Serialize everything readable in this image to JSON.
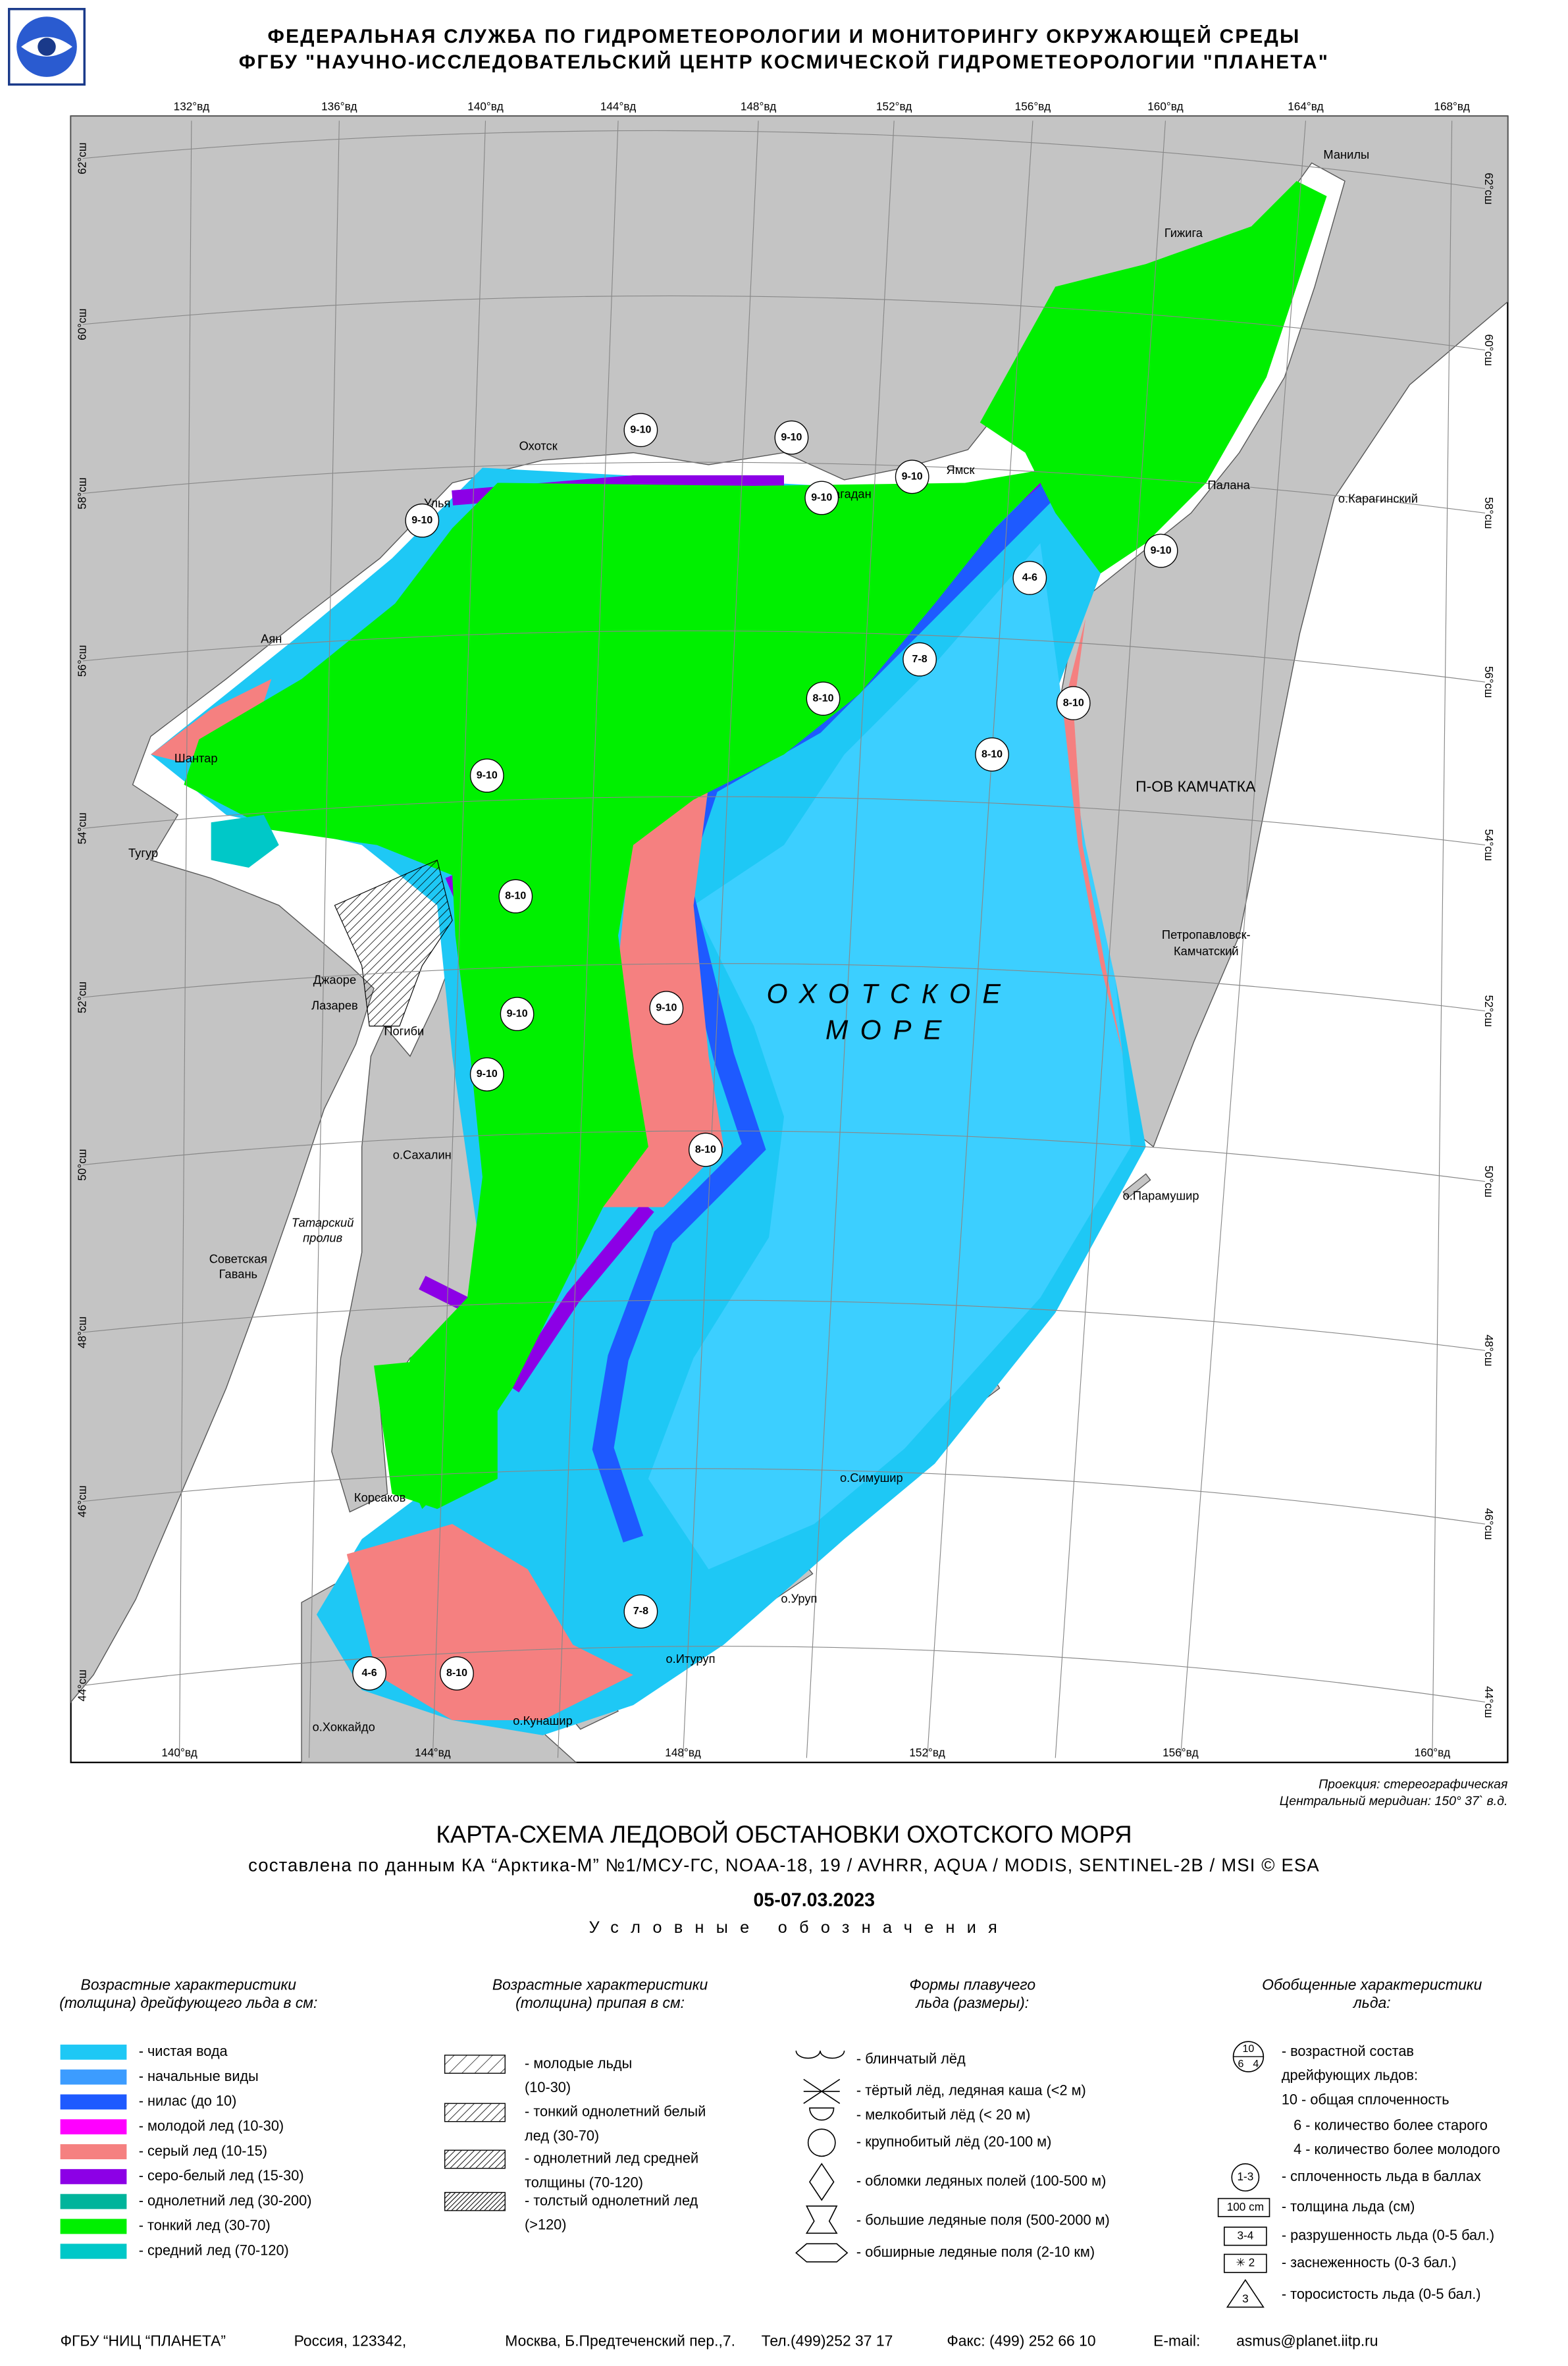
{
  "header": {
    "org": "ФЕДЕРАЛЬНАЯ СЛУЖБА ПО ГИДРОМЕТЕОРОЛОГИИ И МОНИТОРИНГУ ОКРУЖАЮЩЕЙ СРЕДЫ",
    "institute": "ФГБУ \"НАУЧНО-ИССЛЕДОВАТЕЛЬСКИЙ ЦЕНТР КОСМИЧЕСКОЙ ГИДРОМЕТЕОРОЛОГИИ \"ПЛАНЕТА\""
  },
  "map": {
    "lon_top": [
      "132°вд",
      "136°вд",
      "140°вд",
      "144°вд",
      "148°вд",
      "152°вд",
      "156°вд",
      "160°вд",
      "164°вд",
      "168°вд"
    ],
    "lon_bottom": [
      "140°вд",
      "144°вд",
      "148°вд",
      "152°вд",
      "156°вд",
      "160°вд"
    ],
    "lat_left": [
      "62°сш",
      "60°сш",
      "58°сш",
      "56°сш",
      "54°сш",
      "52°сш",
      "50°сш",
      "48°сш",
      "46°сш",
      "44°сш"
    ],
    "lat_right": [
      "62°сш",
      "60°сш",
      "58°сш",
      "56°сш",
      "54°сш",
      "52°сш",
      "50°сш",
      "48°сш",
      "46°сш",
      "44°сш"
    ],
    "places": [
      "Манилы",
      "Гижига",
      "Магадан",
      "Ямск",
      "Охотск",
      "Улья",
      "Палана",
      "о.Карагинский",
      "Аян",
      "Шантар",
      "Тугур",
      "П-ОВ КАМЧАТКА",
      "Петропавловск-",
      "Камчатский",
      "Джаоре",
      "Лазарев",
      "Погиби",
      "о.Сахалин",
      "Татарский",
      "пролив",
      "Советская",
      "Гавань",
      "о.Парамушир",
      "Корсаков",
      "о.Симушир",
      "о.Уруп",
      "о.Итуруп",
      "о.Кунашир",
      "о.Хоккайдо"
    ],
    "sea_name": [
      "ОХОТСКОЕ",
      "МОРЕ"
    ],
    "concentration": [
      "9-10",
      "9-10",
      "9-10",
      "9-10",
      "9-10",
      "9-10",
      "4-6",
      "7-8",
      "8-10",
      "8-10",
      "8-10",
      "9-10",
      "8-10",
      "9-10",
      "9-10",
      "9-10",
      "8-10",
      "7-8",
      "4-6",
      "8-10"
    ],
    "projection": [
      "Проекция: стереографическая",
      "Центральный меридиан: 150° 37` в.д."
    ]
  },
  "title": "КАРТА-СХЕМА ЛЕДОВОЙ ОБСТАНОВКИ ОХОТСКОГО МОРЯ",
  "subtitle": "составлена по данным КА “Арктика-М” №1/МСУ-ГС, NOAA-18, 19 / AVHRR, AQUA / MODIS, SENTINEL-2B / MSI © ESA",
  "date": "05-07.03.2023",
  "legend_heading": "Условные обозначения",
  "legend": {
    "drifting": {
      "title": [
        "Возрастные характеристики",
        "(толщина) дрейфующего льда в см:"
      ],
      "items": [
        {
          "label": "- чистая вода",
          "color": "#1ec8f5"
        },
        {
          "label": "- начальные виды",
          "color": "#3c9cff"
        },
        {
          "label": "- нилас (до 10)",
          "color": "#1e5aff"
        },
        {
          "label": "- молодой лед (10-30)",
          "color": "#ff00ff"
        },
        {
          "label": "- серый лед (10-15)",
          "color": "#f58080"
        },
        {
          "label": "- серо-белый лед (15-30)",
          "color": "#8c00e6"
        },
        {
          "label": "- однолетний лед (30-200)",
          "color": "#00b49b"
        },
        {
          "label": "- тонкий лед (30-70)",
          "color": "#00f000"
        },
        {
          "label": "- средний лед (70-120)",
          "color": "#00c8c8"
        }
      ]
    },
    "fast": {
      "title": [
        "Возрастные характеристики",
        "(толщина) припая в см:"
      ],
      "items": [
        [
          "- молодые льды",
          "(10-30)"
        ],
        [
          "- тонкий однолетний белый",
          "лед (30-70)"
        ],
        [
          "- однолетний лед средней",
          "толщины (70-120)"
        ],
        [
          "- толстый однолетний лед",
          "(>120)"
        ]
      ]
    },
    "forms": {
      "title": [
        "Формы плавучего",
        "льда (размеры):"
      ],
      "items": [
        "- блинчатый лёд",
        "- тёртый лёд, ледяная каша (<2 м)",
        "- мелкобитый лёд (< 20 м)",
        "- крупнобитый лёд (20-100 м)",
        "- обломки ледяных полей (100-500 м)",
        "- большие ледяные поля (500-2000 м)",
        "- обширные ледяные поля (2-10 км)"
      ]
    },
    "general": {
      "title": [
        "Обобщенные характеристики",
        "льда:"
      ],
      "composition_icon": [
        "10",
        "6",
        "4"
      ],
      "icons": [
        "1-3",
        "100 cm",
        "3-4",
        "✳ 2",
        "3"
      ],
      "items": [
        "- возрастной состав",
        "дрейфующих льдов:",
        "10 - общая сплоченность",
        "6 - количество более старого",
        "4 - количество более молодого",
        "- сплоченность льда в баллах",
        "- толщина льда (см)",
        "- разрушенность льда (0-5 бал.)",
        "- заснеженность (0-3 бал.)",
        "- торосистость льда (0-5 бал.)"
      ]
    }
  },
  "footer": [
    "ФГБУ “НИЦ “ПЛАНЕТА”",
    "Россия, 123342,",
    "Москва, Б.Предтеченский пер.,7.",
    "Тел.(499)252 37 17",
    "Факс: (499) 252 66 10",
    "E-mail:",
    "asmus@planet.iitp.ru"
  ]
}
